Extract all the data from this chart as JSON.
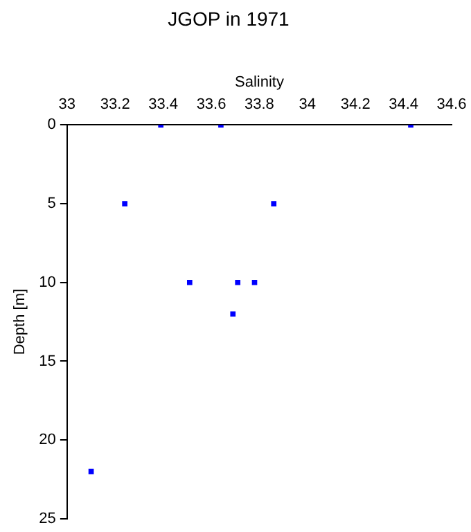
{
  "chart_data": {
    "type": "scatter",
    "title": "JGOP in 1971",
    "xlabel": "Salinity",
    "ylabel": "Depth [m]",
    "x": [
      33.39,
      33.64,
      34.43,
      33.24,
      33.86,
      33.51,
      33.71,
      33.78,
      33.69,
      33.1
    ],
    "series": [
      {
        "color": "#0000ff",
        "values": [
          0,
          0,
          0,
          5,
          5,
          10,
          10,
          10,
          12,
          22
        ]
      }
    ],
    "xlim": [
      33,
      34.6
    ],
    "xticks": [
      33,
      33.2,
      33.4,
      33.6,
      33.8,
      34,
      34.2,
      34.4,
      34.6
    ],
    "ylim": [
      25,
      0
    ],
    "yticks": [
      0,
      5,
      10,
      15,
      20,
      25
    ],
    "grid": false,
    "legend": false,
    "marker": "square"
  }
}
